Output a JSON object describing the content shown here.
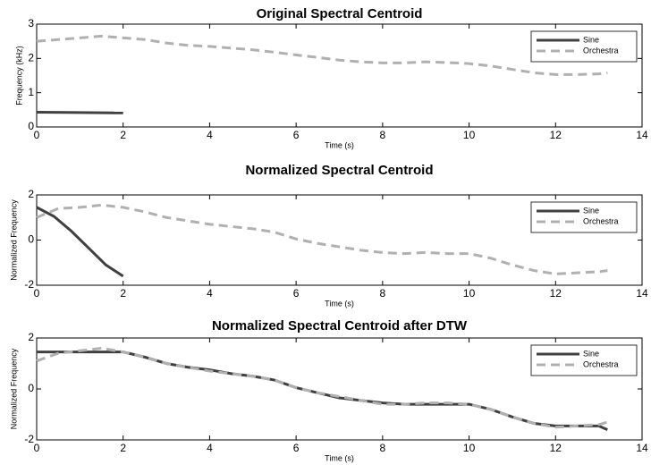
{
  "chart_data": [
    {
      "type": "line",
      "title": "Original Spectral Centroid",
      "x_label": "Time (s)",
      "y_label": "Frequency (kHz)",
      "xlim": [
        0,
        14
      ],
      "xticks": [
        0,
        2,
        4,
        6,
        8,
        10,
        12,
        14
      ],
      "ylim": [
        0,
        3
      ],
      "yticks": [
        0,
        1,
        2,
        3
      ],
      "legend": "upper right",
      "series": [
        {
          "name": "Sine",
          "color": "#404040",
          "style": "solid",
          "x": [
            0,
            1,
            2
          ],
          "values": [
            0.43,
            0.42,
            0.41
          ]
        },
        {
          "name": "Orchestra",
          "color": "#b0b0b0",
          "style": "dashed",
          "x": [
            0,
            0.5,
            1,
            1.5,
            2,
            2.5,
            3,
            3.5,
            4,
            4.5,
            5,
            5.5,
            6,
            6.5,
            7,
            7.5,
            8,
            8.5,
            9,
            9.5,
            10,
            10.5,
            11,
            11.5,
            12,
            12.5,
            13,
            13.2
          ],
          "values": [
            2.5,
            2.55,
            2.6,
            2.65,
            2.6,
            2.55,
            2.45,
            2.38,
            2.35,
            2.3,
            2.25,
            2.18,
            2.1,
            2.03,
            1.95,
            1.9,
            1.87,
            1.87,
            1.9,
            1.88,
            1.85,
            1.78,
            1.68,
            1.58,
            1.53,
            1.53,
            1.55,
            1.58
          ]
        }
      ]
    },
    {
      "type": "line",
      "title": "Normalized Spectral Centroid",
      "x_label": "Time (s)",
      "y_label": "Normalized Frequency",
      "xlim": [
        0,
        14
      ],
      "xticks": [
        0,
        2,
        4,
        6,
        8,
        10,
        12,
        14
      ],
      "ylim": [
        -2,
        2
      ],
      "yticks": [
        -2,
        0,
        2
      ],
      "legend": "upper right",
      "series": [
        {
          "name": "Sine",
          "color": "#404040",
          "style": "solid",
          "x": [
            0,
            0.4,
            0.8,
            1.2,
            1.6,
            2.0
          ],
          "values": [
            1.45,
            1.05,
            0.4,
            -0.35,
            -1.1,
            -1.6
          ]
        },
        {
          "name": "Orchestra",
          "color": "#b0b0b0",
          "style": "dashed",
          "x": [
            0,
            0.5,
            1,
            1.5,
            2,
            2.5,
            3,
            3.5,
            4,
            4.5,
            5,
            5.5,
            6,
            6.5,
            7,
            7.5,
            8,
            8.5,
            9,
            9.5,
            10,
            10.5,
            11,
            11.5,
            12,
            12.5,
            13,
            13.2
          ],
          "values": [
            1.0,
            1.4,
            1.45,
            1.55,
            1.45,
            1.25,
            1.0,
            0.85,
            0.7,
            0.6,
            0.5,
            0.35,
            0.05,
            -0.15,
            -0.3,
            -0.45,
            -0.55,
            -0.6,
            -0.55,
            -0.6,
            -0.6,
            -0.8,
            -1.1,
            -1.35,
            -1.5,
            -1.45,
            -1.4,
            -1.35
          ]
        }
      ]
    },
    {
      "type": "line",
      "title": "Normalized Spectral Centroid after DTW",
      "x_label": "Time (s)",
      "y_label": "Normalized Frequency",
      "xlim": [
        0,
        14
      ],
      "xticks": [
        0,
        2,
        4,
        6,
        8,
        10,
        12,
        14
      ],
      "ylim": [
        -2,
        2
      ],
      "yticks": [
        -2,
        0,
        2
      ],
      "legend": "upper right",
      "series": [
        {
          "name": "Sine",
          "color": "#404040",
          "style": "solid",
          "x": [
            0,
            0.5,
            1,
            1.5,
            2,
            2.5,
            3,
            3.5,
            4,
            4.5,
            5,
            5.5,
            6,
            6.5,
            7,
            7.5,
            8,
            8.5,
            9,
            9.5,
            10,
            10.5,
            11,
            11.5,
            12,
            12.5,
            13,
            13.2
          ],
          "values": [
            1.45,
            1.45,
            1.45,
            1.45,
            1.45,
            1.25,
            1.0,
            0.85,
            0.75,
            0.6,
            0.5,
            0.35,
            0.05,
            -0.15,
            -0.35,
            -0.45,
            -0.55,
            -0.6,
            -0.6,
            -0.6,
            -0.6,
            -0.8,
            -1.1,
            -1.35,
            -1.45,
            -1.45,
            -1.45,
            -1.6
          ]
        },
        {
          "name": "Orchestra",
          "color": "#b0b0b0",
          "style": "dashed",
          "x": [
            0,
            0.5,
            1,
            1.5,
            2,
            2.5,
            3,
            3.5,
            4,
            4.5,
            5,
            5.5,
            6,
            6.5,
            7,
            7.5,
            8,
            8.5,
            9,
            9.5,
            10,
            10.5,
            11,
            11.5,
            12,
            12.5,
            13,
            13.2
          ],
          "values": [
            1.1,
            1.4,
            1.5,
            1.6,
            1.45,
            1.25,
            1.0,
            0.85,
            0.7,
            0.6,
            0.5,
            0.35,
            0.05,
            -0.15,
            -0.3,
            -0.45,
            -0.6,
            -0.6,
            -0.55,
            -0.55,
            -0.6,
            -0.8,
            -1.1,
            -1.35,
            -1.5,
            -1.45,
            -1.4,
            -1.3
          ]
        }
      ]
    }
  ]
}
